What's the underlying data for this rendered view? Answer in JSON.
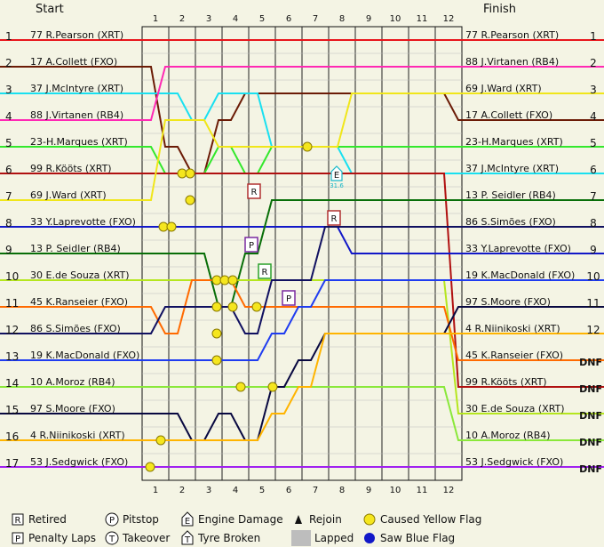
{
  "chart_data": {
    "type": "line",
    "title": "",
    "start_label": "Start",
    "finish_label": "Finish",
    "laps": [
      "1",
      "2",
      "3",
      "4",
      "5",
      "6",
      "7",
      "8",
      "9",
      "10",
      "11",
      "12"
    ],
    "positions": [
      "1",
      "2",
      "3",
      "4",
      "5",
      "6",
      "7",
      "8",
      "9",
      "10",
      "11",
      "12",
      "13",
      "14",
      "15",
      "16",
      "17"
    ],
    "start_grid": [
      "77 R.Pearson (XRT)",
      "17 A.Collett (FXO)",
      "37 J.McIntyre (XRT)",
      "88 J.Virtanen (RB4)",
      "23-H.Marques (XRT)",
      "99 R.Kööts (XRT)",
      "69 J.Ward (XRT)",
      "33 Y.Laprevotte (FXO)",
      "13 P. Seidler (RB4)",
      "30 E.de Souza (XRT)",
      "45 K.Ranseier (FXO)",
      "86 S.Simões (FXO)",
      "19 K.MacDonald (FXO)",
      "10 A.Moroz (RB4)",
      "97 S.Moore (FXO)",
      "4 R.Niinikoski (XRT)",
      "53 J.Sedgwick (FXO)"
    ],
    "finish_order": [
      {
        "label": "77 R.Pearson (XRT)",
        "pos": "1"
      },
      {
        "label": "88 J.Virtanen (RB4)",
        "pos": "2"
      },
      {
        "label": "69 J.Ward (XRT)",
        "pos": "3"
      },
      {
        "label": "17 A.Collett (FXO)",
        "pos": "4"
      },
      {
        "label": "23-H.Marques (XRT)",
        "pos": "5"
      },
      {
        "label": "37 J.McIntyre (XRT)",
        "pos": "6"
      },
      {
        "label": "13 P. Seidler (RB4)",
        "pos": "7"
      },
      {
        "label": "86 S.Simões (FXO)",
        "pos": "8"
      },
      {
        "label": "33 Y.Laprevotte (FXO)",
        "pos": "9"
      },
      {
        "label": "19 K.MacDonald (FXO)",
        "pos": "10"
      },
      {
        "label": "97 S.Moore (FXO)",
        "pos": "11"
      },
      {
        "label": "4 R.Niinikoski (XRT)",
        "pos": "12"
      },
      {
        "label": "45 K.Ranseier (FXO)",
        "pos": "DNF"
      },
      {
        "label": "99 R.Kööts (XRT)",
        "pos": "DNF"
      },
      {
        "label": "30 E.de Souza (XRT)",
        "pos": "DNF"
      },
      {
        "label": "10 A.Moroz (RB4)",
        "pos": "DNF"
      },
      {
        "label": "53 J.Sedgwick (FXO)",
        "pos": "DNF"
      }
    ],
    "series": [
      {
        "driver": "77 R.Pearson (XRT)",
        "color": "#e8151b",
        "positions": [
          1,
          1,
          1,
          1,
          1,
          1,
          1,
          1,
          1,
          1,
          1,
          1,
          1
        ]
      },
      {
        "driver": "17 A.Collett (FXO)",
        "color": "#6b1b06",
        "positions": [
          2,
          5,
          6,
          4,
          3,
          3,
          3,
          3,
          3,
          3,
          3,
          3,
          4
        ]
      },
      {
        "driver": "37 J.McIntyre (XRT)",
        "color": "#19e0f0",
        "positions": [
          3,
          3,
          4,
          3,
          3,
          5,
          5,
          5,
          6,
          6,
          6,
          6,
          6
        ]
      },
      {
        "driver": "88 J.Virtanen (RB4)",
        "color": "#ff29b4",
        "positions": [
          4,
          2,
          2,
          2,
          2,
          2,
          2,
          2,
          2,
          2,
          2,
          2,
          2
        ]
      },
      {
        "driver": "23-H.Marques (XRT)",
        "color": "#33e82c",
        "positions": [
          5,
          6,
          6,
          5,
          6,
          5,
          5,
          5,
          5,
          5,
          5,
          5,
          5
        ]
      },
      {
        "driver": "99 R.Kööts (XRT)",
        "color": "#b01010",
        "positions": [
          6,
          6,
          6,
          6,
          6,
          6,
          6,
          6,
          6,
          6,
          6,
          6,
          14
        ]
      },
      {
        "driver": "69 J.Ward (XRT)",
        "color": "#f0e61a",
        "positions": [
          7,
          4,
          4,
          5,
          5,
          5,
          5,
          5,
          3,
          3,
          3,
          3,
          3
        ]
      },
      {
        "driver": "33 Y.Laprevotte (FXO)",
        "color": "#1218c8",
        "positions": [
          8,
          8,
          8,
          8,
          8,
          8,
          8,
          8,
          9,
          9,
          9,
          9,
          9
        ]
      },
      {
        "driver": "13 P. Seidler (RB4)",
        "color": "#086e08",
        "positions": [
          9,
          9,
          9,
          11,
          9,
          7,
          7,
          7,
          7,
          7,
          7,
          7,
          7
        ]
      },
      {
        "driver": "30 E.de Souza (XRT)",
        "color": "#b5e61e",
        "positions": [
          10,
          10,
          10,
          10,
          10,
          10,
          10,
          10,
          10,
          10,
          10,
          10,
          15
        ]
      },
      {
        "driver": "45 K.Ranseier (FXO)",
        "color": "#ff6a00",
        "positions": [
          11,
          12,
          10,
          10,
          11,
          11,
          11,
          11,
          11,
          11,
          11,
          11,
          13
        ]
      },
      {
        "driver": "86 S.Simões (FXO)",
        "color": "#101060",
        "positions": [
          12,
          11,
          11,
          11,
          12,
          10,
          10,
          8,
          8,
          8,
          8,
          8,
          8
        ]
      },
      {
        "driver": "19 K.MacDonald (FXO)",
        "color": "#1f3cf0",
        "positions": [
          13,
          13,
          13,
          13,
          13,
          12,
          11,
          10,
          10,
          10,
          10,
          10,
          10
        ]
      },
      {
        "driver": "10 A.Moroz (RB4)",
        "color": "#8ae83a",
        "positions": [
          14,
          14,
          14,
          14,
          14,
          14,
          14,
          14,
          14,
          14,
          14,
          14,
          16
        ]
      },
      {
        "driver": "97 S.Moore (FXO)",
        "color": "#080840",
        "positions": [
          15,
          15,
          16,
          15,
          16,
          14,
          13,
          12,
          12,
          12,
          12,
          12,
          11
        ]
      },
      {
        "driver": "4 R.Niinikoski (XRT)",
        "color": "#ffb400",
        "positions": [
          16,
          16,
          16,
          16,
          16,
          15,
          14,
          12,
          12,
          12,
          12,
          12,
          12
        ]
      },
      {
        "driver": "53 J.Sedgwick (FXO)",
        "color": "#a020f0",
        "positions": [
          17,
          17,
          17,
          17,
          17,
          17,
          17,
          17,
          17,
          17,
          17,
          17,
          17
        ]
      }
    ],
    "events": [
      {
        "type": "retired",
        "symbol": "R",
        "lap": 4.2,
        "pos": 7
      },
      {
        "type": "retired",
        "symbol": "R",
        "lap": 7.2,
        "pos": 8
      },
      {
        "type": "penalty_laps",
        "symbol": "P",
        "lap": 4.1,
        "pos": 9
      },
      {
        "type": "rejoin",
        "symbol": "R",
        "lap": 4.6,
        "pos": 10
      },
      {
        "type": "penalty_laps",
        "symbol": "P",
        "lap": 5.5,
        "pos": 11
      },
      {
        "type": "engine_damage",
        "symbol": "E",
        "lap": 7.3,
        "pos": 6,
        "note": "31.6"
      },
      {
        "type": "yellow_flag",
        "lap": 6.2,
        "pos": 5
      },
      {
        "type": "yellow_flag",
        "lap": 1.5,
        "pos": 6
      },
      {
        "type": "yellow_flag",
        "lap": 1.8,
        "pos": 6
      },
      {
        "type": "yellow_flag",
        "lap": 1.8,
        "pos": 7
      },
      {
        "type": "yellow_flag",
        "lap": 0.8,
        "pos": 8
      },
      {
        "type": "yellow_flag",
        "lap": 1.1,
        "pos": 8
      },
      {
        "type": "yellow_flag",
        "lap": 2.8,
        "pos": 10
      },
      {
        "type": "yellow_flag",
        "lap": 3.1,
        "pos": 10
      },
      {
        "type": "yellow_flag",
        "lap": 3.4,
        "pos": 10
      },
      {
        "type": "yellow_flag",
        "lap": 2.8,
        "pos": 11
      },
      {
        "type": "yellow_flag",
        "lap": 3.4,
        "pos": 11
      },
      {
        "type": "yellow_flag",
        "lap": 4.3,
        "pos": 11
      },
      {
        "type": "yellow_flag",
        "lap": 2.8,
        "pos": 12
      },
      {
        "type": "yellow_flag",
        "lap": 2.8,
        "pos": 13
      },
      {
        "type": "yellow_flag",
        "lap": 3.7,
        "pos": 14
      },
      {
        "type": "yellow_flag",
        "lap": 4.9,
        "pos": 14
      },
      {
        "type": "yellow_flag",
        "lap": 0.7,
        "pos": 16
      },
      {
        "type": "yellow_flag",
        "lap": 0.3,
        "pos": 17
      }
    ],
    "legend": [
      {
        "icon": "R",
        "label": "Retired",
        "shape": "square"
      },
      {
        "icon": "P",
        "label": "Pitstop",
        "shape": "circle"
      },
      {
        "icon": "E",
        "label": "Engine Damage",
        "shape": "house"
      },
      {
        "icon": "▲",
        "label": "Rejoin",
        "shape": "triangle"
      },
      {
        "icon": "",
        "label": "Caused Yellow Flag",
        "shape": "yellow-dot"
      },
      {
        "icon": "P",
        "label": "Penalty Laps",
        "shape": "square"
      },
      {
        "icon": "T",
        "label": "Takeover",
        "shape": "circle"
      },
      {
        "icon": "T",
        "label": "Tyre Broken",
        "shape": "house"
      },
      {
        "icon": "",
        "label": "Lapped",
        "shape": "gray-box"
      },
      {
        "icon": "",
        "label": "Saw Blue Flag",
        "shape": "blue-dot"
      }
    ]
  }
}
